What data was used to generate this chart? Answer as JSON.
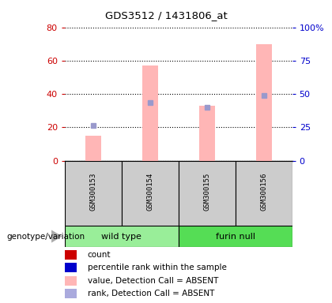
{
  "title": "GDS3512 / 1431806_at",
  "samples": [
    "GSM300153",
    "GSM300154",
    "GSM300155",
    "GSM300156"
  ],
  "pink_bar_values": [
    15,
    57,
    33,
    70
  ],
  "blue_dot_values": [
    21,
    35,
    32,
    39
  ],
  "ylim_left": [
    0,
    80
  ],
  "ylim_right": [
    0,
    100
  ],
  "yticks_left": [
    0,
    20,
    40,
    60,
    80
  ],
  "yticks_right": [
    0,
    25,
    50,
    75,
    100
  ],
  "left_axis_color": "#CC0000",
  "right_axis_color": "#0000CC",
  "pink_color": "#FFB6B6",
  "blue_dot_color": "#9999CC",
  "wildtype_color": "#99EE99",
  "furin_color": "#55DD55",
  "gray_color": "#CCCCCC",
  "legend_items": [
    {
      "label": "count",
      "color": "#CC0000"
    },
    {
      "label": "percentile rank within the sample",
      "color": "#0000CC"
    },
    {
      "label": "value, Detection Call = ABSENT",
      "color": "#FFB6B6"
    },
    {
      "label": "rank, Detection Call = ABSENT",
      "color": "#AAAADD"
    }
  ]
}
